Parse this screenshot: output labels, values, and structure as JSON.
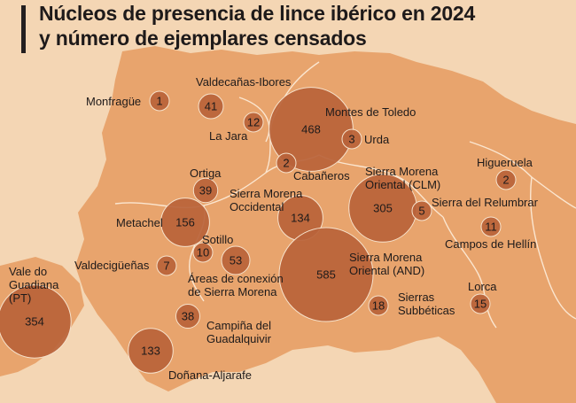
{
  "title": {
    "line1": "Núcleos de presencia de lince ibérico en 2024",
    "line2": "y número de ejemplares censados"
  },
  "colors": {
    "background": "#f4d6b4",
    "land": "#e8a46d",
    "border": "#fbe6d0",
    "bubble": "#b8633a",
    "bubble_stroke": "#f6e2cc",
    "label": "#1e1a1a",
    "value": "#1e1a1a"
  },
  "nuclei": [
    {
      "id": "monfrague",
      "label": [
        "Monfragüe"
      ],
      "value": 1
    },
    {
      "id": "valdecanas",
      "label": [
        "Valdecañas-Ibores"
      ],
      "value": 41
    },
    {
      "id": "la-jara",
      "label": [
        "La Jara"
      ],
      "value": 12
    },
    {
      "id": "montes-toledo",
      "label": [
        "Montes de Toledo"
      ],
      "value": 468
    },
    {
      "id": "urda",
      "label": [
        "Urda"
      ],
      "value": 3
    },
    {
      "id": "cabaneros",
      "label": [
        "Cabañeros"
      ],
      "value": 2
    },
    {
      "id": "ortiga",
      "label": [
        "Ortiga"
      ],
      "value": 39
    },
    {
      "id": "sm-occidental",
      "label": [
        "Sierra Morena",
        "Occidental"
      ],
      "value": 134
    },
    {
      "id": "metachel",
      "label": [
        "Metachel"
      ],
      "value": 156
    },
    {
      "id": "sm-oriental-clm",
      "label": [
        "Sierra Morena",
        "Oriental (CLM)"
      ],
      "value": 305
    },
    {
      "id": "relumbrar",
      "label": [
        "Sierra del Relumbrar"
      ],
      "value": 5
    },
    {
      "id": "higueruela",
      "label": [
        "Higueruela"
      ],
      "value": 2
    },
    {
      "id": "campos-hellin",
      "label": [
        "Campos de Hellín"
      ],
      "value": 11
    },
    {
      "id": "sotillo",
      "label": [
        "Sotillo"
      ],
      "value": 10
    },
    {
      "id": "valdeciguenas",
      "label": [
        "Valdecigüeñas"
      ],
      "value": 7
    },
    {
      "id": "areas-conexion",
      "label": [
        "Áreas de conexión",
        "de Sierra Morena"
      ],
      "value": 53
    },
    {
      "id": "sm-oriental-and",
      "label": [
        "Sierra Morena",
        "Oriental (AND)"
      ],
      "value": 585
    },
    {
      "id": "subbeticas",
      "label": [
        "Sierras",
        "Subbéticas"
      ],
      "value": 18
    },
    {
      "id": "lorca",
      "label": [
        "Lorca"
      ],
      "value": 15
    },
    {
      "id": "vale-guadiana",
      "label": [
        "Vale do",
        "Guadiana",
        "(PT)"
      ],
      "value": 354
    },
    {
      "id": "campina",
      "label": [
        "Campiña del",
        "Guadalquivir"
      ],
      "value": 38
    },
    {
      "id": "donana",
      "label": [
        "Doñana-Aljarafe"
      ],
      "value": 133
    }
  ]
}
